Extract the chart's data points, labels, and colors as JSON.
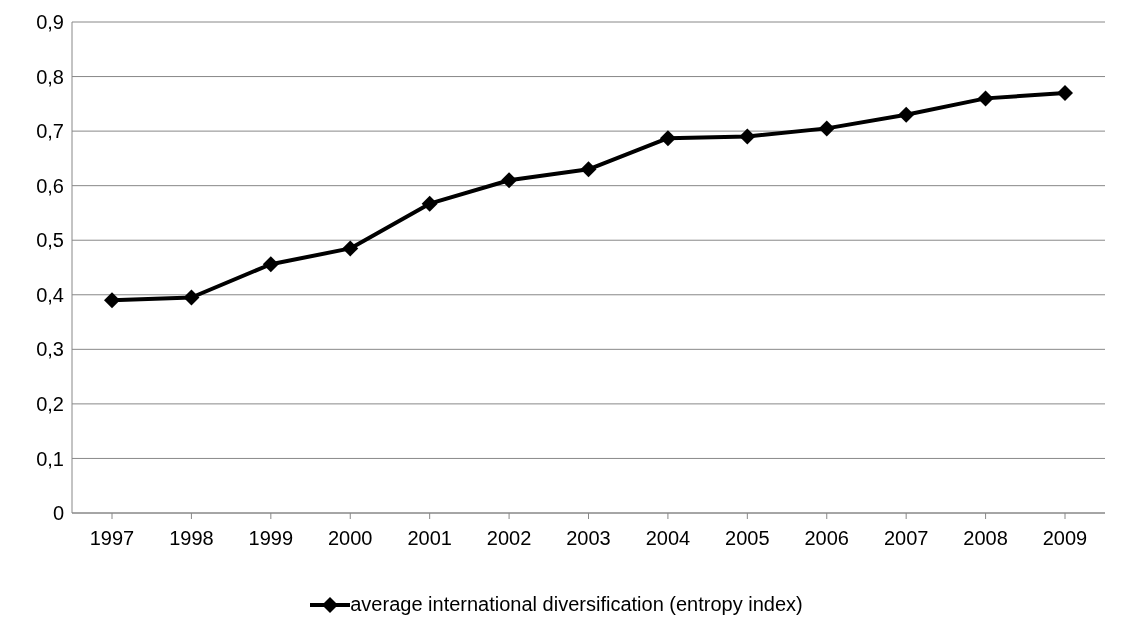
{
  "chart_data": {
    "type": "line",
    "categories": [
      "1997",
      "1998",
      "1999",
      "2000",
      "2001",
      "2002",
      "2003",
      "2004",
      "2005",
      "2006",
      "2007",
      "2008",
      "2009"
    ],
    "series": [
      {
        "name": "average international diversification (entropy index)",
        "color": "#000000",
        "values": [
          0.39,
          0.395,
          0.456,
          0.485,
          0.567,
          0.61,
          0.63,
          0.687,
          0.69,
          0.705,
          0.73,
          0.76,
          0.77
        ]
      }
    ],
    "ylim": [
      0,
      0.9
    ],
    "yticks": [
      {
        "value": 0,
        "label": "0"
      },
      {
        "value": 0.1,
        "label": "0,1"
      },
      {
        "value": 0.2,
        "label": "0,2"
      },
      {
        "value": 0.3,
        "label": "0,3"
      },
      {
        "value": 0.4,
        "label": "0,4"
      },
      {
        "value": 0.5,
        "label": "0,5"
      },
      {
        "value": 0.6,
        "label": "0,6"
      },
      {
        "value": 0.7,
        "label": "0,7"
      },
      {
        "value": 0.8,
        "label": "0,8"
      },
      {
        "value": 0.9,
        "label": "0,9"
      }
    ],
    "grid": "y",
    "legend": "bottom",
    "marker": "diamond",
    "line_style": "solid"
  }
}
